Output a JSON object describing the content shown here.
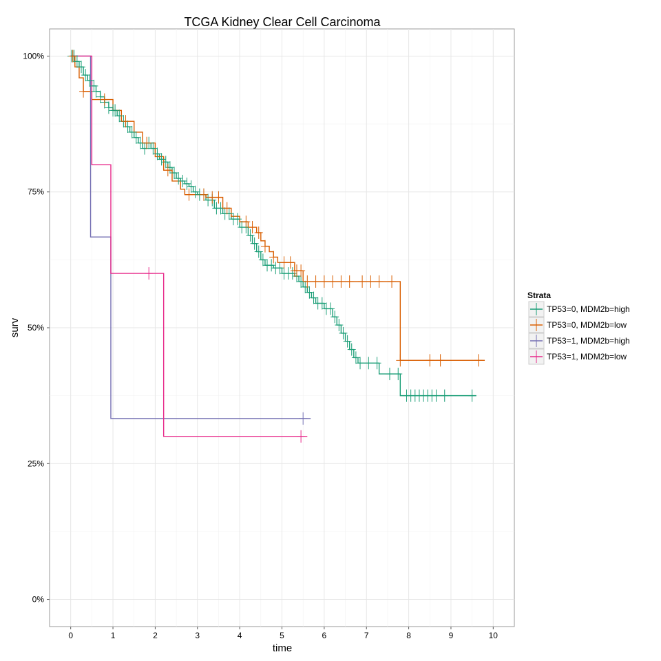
{
  "chart_data": {
    "type": "line",
    "title": "TCGA Kidney Clear Cell Carcinoma",
    "xlabel": "time",
    "ylabel": "surv",
    "xlim": [
      -0.5,
      10.5
    ],
    "ylim": [
      -0.05,
      1.05
    ],
    "x_ticks": [
      0,
      1,
      2,
      3,
      4,
      5,
      6,
      7,
      8,
      9,
      10
    ],
    "x_tick_labels": [
      "0",
      "1",
      "2",
      "3",
      "4",
      "5",
      "6",
      "7",
      "8",
      "9",
      "10"
    ],
    "y_ticks": [
      0,
      0.25,
      0.5,
      0.75,
      1.0
    ],
    "y_tick_labels": [
      "0%",
      "25%",
      "50%",
      "75%",
      "100%"
    ],
    "grid": true,
    "legend": {
      "title": "Strata",
      "position": "right"
    },
    "series": [
      {
        "name": "TP53=0, MDM2b=high",
        "color": "#1b9e77",
        "steps": [
          [
            0,
            1.0
          ],
          [
            0.1,
            0.99
          ],
          [
            0.2,
            0.98
          ],
          [
            0.3,
            0.965
          ],
          [
            0.4,
            0.955
          ],
          [
            0.5,
            0.945
          ],
          [
            0.6,
            0.935
          ],
          [
            0.7,
            0.925
          ],
          [
            0.8,
            0.915
          ],
          [
            0.9,
            0.905
          ],
          [
            1.0,
            0.9
          ],
          [
            1.1,
            0.89
          ],
          [
            1.2,
            0.88
          ],
          [
            1.3,
            0.87
          ],
          [
            1.4,
            0.86
          ],
          [
            1.5,
            0.85
          ],
          [
            1.6,
            0.84
          ],
          [
            1.7,
            0.83
          ],
          [
            1.8,
            0.84
          ],
          [
            1.9,
            0.83
          ],
          [
            2.0,
            0.82
          ],
          [
            2.1,
            0.81
          ],
          [
            2.2,
            0.805
          ],
          [
            2.3,
            0.795
          ],
          [
            2.4,
            0.785
          ],
          [
            2.5,
            0.775
          ],
          [
            2.6,
            0.77
          ],
          [
            2.7,
            0.765
          ],
          [
            2.8,
            0.76
          ],
          [
            2.9,
            0.75
          ],
          [
            3.0,
            0.745
          ],
          [
            3.2,
            0.735
          ],
          [
            3.4,
            0.72
          ],
          [
            3.6,
            0.71
          ],
          [
            3.8,
            0.7
          ],
          [
            4.0,
            0.685
          ],
          [
            4.2,
            0.67
          ],
          [
            4.3,
            0.655
          ],
          [
            4.4,
            0.64
          ],
          [
            4.5,
            0.625
          ],
          [
            4.6,
            0.615
          ],
          [
            4.8,
            0.61
          ],
          [
            5.0,
            0.6
          ],
          [
            5.3,
            0.595
          ],
          [
            5.4,
            0.585
          ],
          [
            5.5,
            0.575
          ],
          [
            5.6,
            0.565
          ],
          [
            5.7,
            0.555
          ],
          [
            5.8,
            0.545
          ],
          [
            6.0,
            0.535
          ],
          [
            6.2,
            0.52
          ],
          [
            6.3,
            0.505
          ],
          [
            6.4,
            0.49
          ],
          [
            6.5,
            0.475
          ],
          [
            6.6,
            0.46
          ],
          [
            6.7,
            0.445
          ],
          [
            6.8,
            0.435
          ],
          [
            7.3,
            0.415
          ],
          [
            7.8,
            0.375
          ],
          [
            9.6,
            0.375
          ]
        ],
        "censor_times": [
          0.02,
          0.05,
          0.08,
          0.15,
          0.25,
          0.35,
          0.45,
          0.55,
          0.6,
          0.7,
          0.8,
          0.9,
          1.0,
          1.05,
          1.15,
          1.25,
          1.35,
          1.45,
          1.55,
          1.65,
          1.75,
          1.85,
          1.95,
          2.05,
          2.15,
          2.25,
          2.35,
          2.45,
          2.55,
          2.65,
          2.75,
          2.85,
          2.95,
          3.05,
          3.15,
          3.25,
          3.35,
          3.45,
          3.55,
          3.65,
          3.75,
          3.85,
          3.95,
          4.05,
          4.15,
          4.25,
          4.35,
          4.45,
          4.55,
          4.65,
          4.75,
          4.85,
          4.95,
          5.05,
          5.15,
          5.25,
          5.35,
          5.45,
          5.55,
          5.65,
          5.75,
          5.85,
          5.95,
          6.05,
          6.15,
          6.25,
          6.35,
          6.45,
          6.55,
          6.65,
          6.75,
          6.85,
          7.05,
          7.25,
          7.55,
          7.75,
          7.95,
          8.05,
          8.15,
          8.25,
          8.35,
          8.45,
          8.55,
          8.65,
          8.85,
          9.5
        ]
      },
      {
        "name": "TP53=0, MDM2b=low",
        "color": "#d95f02",
        "steps": [
          [
            0,
            1.0
          ],
          [
            0.1,
            0.98
          ],
          [
            0.2,
            0.96
          ],
          [
            0.3,
            0.935
          ],
          [
            0.5,
            0.92
          ],
          [
            1.0,
            0.9
          ],
          [
            1.2,
            0.88
          ],
          [
            1.5,
            0.86
          ],
          [
            1.7,
            0.84
          ],
          [
            2.0,
            0.815
          ],
          [
            2.2,
            0.79
          ],
          [
            2.4,
            0.77
          ],
          [
            2.6,
            0.755
          ],
          [
            2.7,
            0.745
          ],
          [
            3.0,
            0.745
          ],
          [
            3.2,
            0.74
          ],
          [
            3.6,
            0.72
          ],
          [
            3.8,
            0.705
          ],
          [
            4.0,
            0.695
          ],
          [
            4.2,
            0.685
          ],
          [
            4.4,
            0.675
          ],
          [
            4.5,
            0.66
          ],
          [
            4.6,
            0.65
          ],
          [
            4.7,
            0.64
          ],
          [
            4.8,
            0.63
          ],
          [
            4.9,
            0.62
          ],
          [
            5.3,
            0.605
          ],
          [
            5.5,
            0.585
          ],
          [
            7.8,
            0.44
          ],
          [
            9.8,
            0.44
          ]
        ],
        "censor_times": [
          0.05,
          0.3,
          0.8,
          1.3,
          1.8,
          2.3,
          2.8,
          3.15,
          3.35,
          3.5,
          3.7,
          4.15,
          4.3,
          4.45,
          4.6,
          4.8,
          5.05,
          5.2,
          5.3,
          5.35,
          5.45,
          5.6,
          5.8,
          6.0,
          6.2,
          6.4,
          6.6,
          6.9,
          7.1,
          7.3,
          7.6,
          7.8,
          8.5,
          8.75,
          9.65
        ]
      },
      {
        "name": "TP53=1, MDM2b=high",
        "color": "#7570b3",
        "steps": [
          [
            0,
            1.0
          ],
          [
            0.47,
            0.667
          ],
          [
            0.95,
            0.333
          ],
          [
            5.68,
            0.333
          ]
        ],
        "censor_times": [
          5.5
        ]
      },
      {
        "name": "TP53=1, MDM2b=low",
        "color": "#e7298a",
        "steps": [
          [
            0,
            1.0
          ],
          [
            0.5,
            0.8
          ],
          [
            0.95,
            0.6
          ],
          [
            2.2,
            0.3
          ],
          [
            5.6,
            0.3
          ]
        ],
        "censor_times": [
          1.85,
          5.45
        ]
      }
    ]
  }
}
